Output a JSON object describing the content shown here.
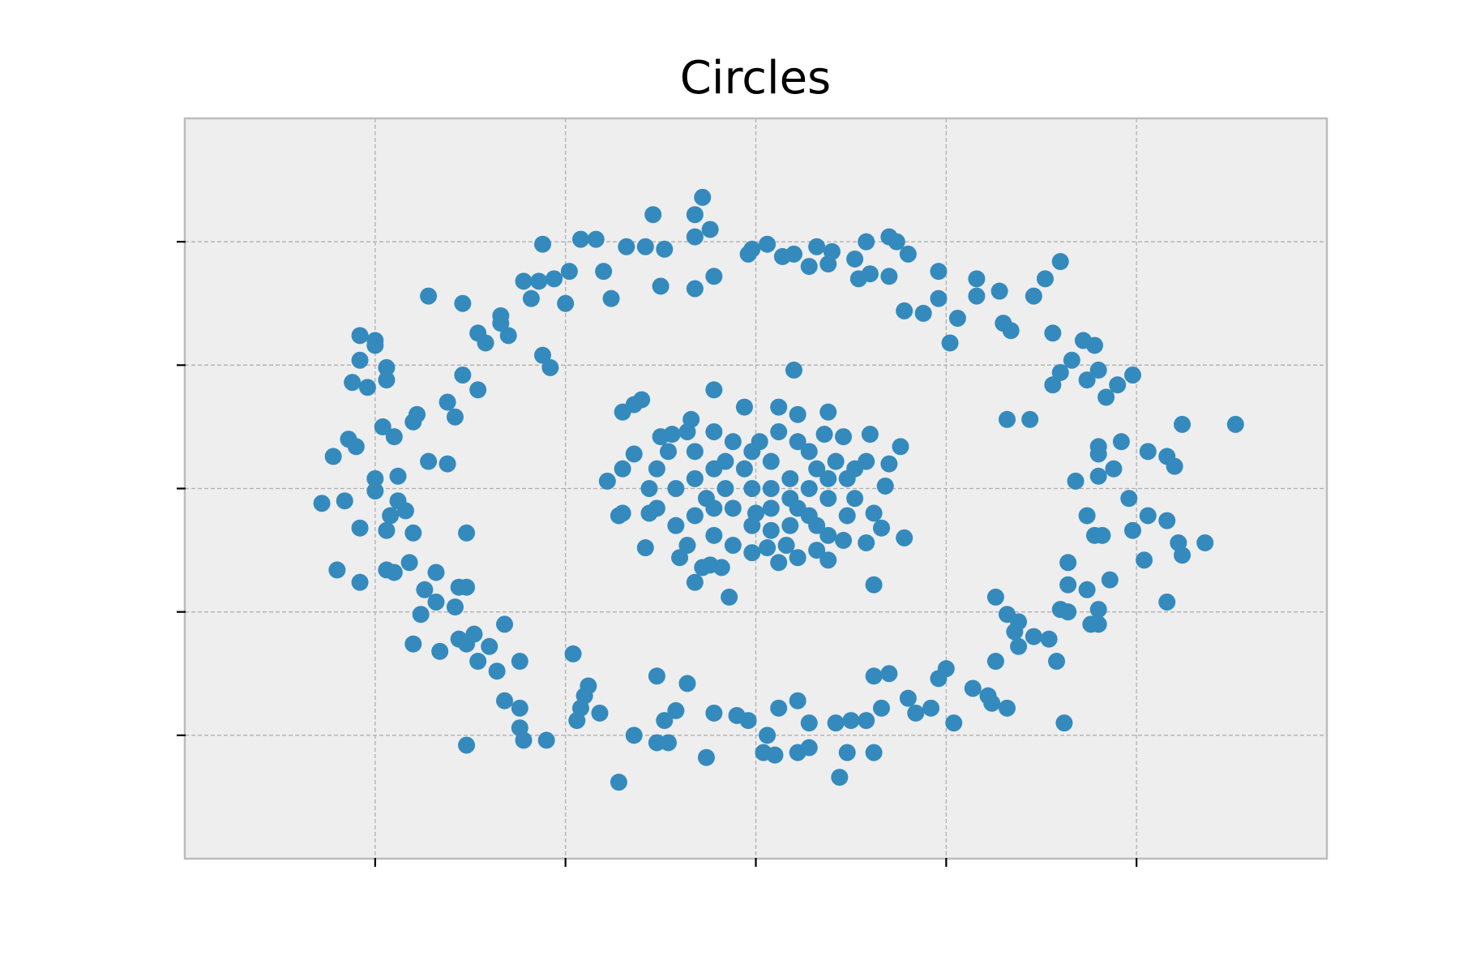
{
  "chart_data": {
    "type": "scatter",
    "title": "Circles",
    "color": "#348abd",
    "xlim": [
      -1.5,
      1.5
    ],
    "ylim": [
      -1.5,
      1.5
    ],
    "xticks": [
      -1,
      -0.5,
      0,
      0.5,
      1
    ],
    "yticks": [
      -1,
      -0.5,
      0,
      0.5,
      1
    ],
    "grid": true,
    "x": [
      -0.56,
      -0.46,
      -0.42,
      -0.34,
      -0.29,
      -0.24,
      -0.27,
      -0.16,
      -0.14,
      -0.16,
      -0.12,
      -0.4,
      -0.49,
      -0.5,
      -0.38,
      -0.25,
      -0.16,
      -0.11,
      -0.61,
      -0.57,
      -0.53,
      -0.59,
      -0.02,
      -0.01,
      0.03,
      0.07,
      0.1,
      0.16,
      0.14,
      0.19,
      0.2,
      0.26,
      0.29,
      0.35,
      0.37,
      0.4,
      0.35,
      0.27,
      0.3,
      0.48,
      0.58,
      0.64,
      0.58,
      0.48,
      0.44,
      0.39,
      0.53,
      0.51,
      0.76,
      0.8,
      0.73,
      0.65,
      0.67,
      0.78,
      0.86,
      0.89,
      0.83,
      0.8,
      0.78,
      0.9,
      0.87,
      0.95,
      0.92,
      0.99,
      0.66,
      0.72,
      1.12,
      1.26,
      0.9,
      0.9,
      0.96,
      1.03,
      1.08,
      1.1,
      0.94,
      0.9,
      0.84,
      0.98,
      1.03,
      0.99,
      1.08,
      0.87,
      0.89,
      0.91,
      1.11,
      1.18,
      1.12,
      1.02,
      0.82,
      0.82,
      0.87,
      0.93,
      0.9,
      0.8,
      0.82,
      0.88,
      0.9,
      1.08,
      0.63,
      0.66,
      0.69,
      0.68,
      0.69,
      0.73,
      0.77,
      0.79,
      0.63,
      0.81,
      0.5,
      0.48,
      0.57,
      0.61,
      0.62,
      0.66,
      0.46,
      0.4,
      0.42,
      0.52,
      0.35,
      0.31,
      0.33,
      0.29,
      0.25,
      0.21,
      0.14,
      0.11,
      0.06,
      0.03,
      0.02,
      0.05,
      0.11,
      0.14,
      0.24,
      0.22,
      0.31,
      -0.02,
      -0.05,
      -0.11,
      -0.13,
      -0.21,
      -0.24,
      -0.26,
      -0.23,
      -0.32,
      -0.26,
      -0.18,
      -0.36,
      -0.44,
      -0.45,
      -0.46,
      -0.47,
      -0.41,
      -0.48,
      -0.55,
      -0.61,
      -0.62,
      -0.62,
      -0.66,
      -0.62,
      -0.68,
      -0.73,
      -0.66,
      -0.7,
      -0.74,
      -0.78,
      -0.76,
      -0.83,
      -0.9,
      -0.76,
      -0.79,
      -0.76,
      -0.78,
      -0.84,
      -0.87,
      -0.88,
      -0.84,
      -0.91,
      -0.97,
      -0.95,
      -1.1,
      -1.04,
      -0.9,
      -0.76,
      -0.97,
      -1.04,
      -0.96,
      -0.92,
      -0.94,
      -1.0,
      -1.0,
      -0.94,
      -1.14,
      -1.08,
      -0.86,
      -0.81,
      -1.11,
      -1.07,
      -1.05,
      -0.98,
      -0.95,
      -0.9,
      -0.89,
      -0.79,
      -0.81,
      -0.77,
      -0.73,
      -1.06,
      -1.02,
      -0.97,
      -1.04,
      -0.97,
      -1.04,
      -1.0,
      -1.0,
      -0.86,
      -0.77,
      -0.73,
      -0.71,
      -0.67,
      -0.67,
      -0.65,
      -0.56,
      -0.54,
      0.1,
      -0.11,
      -0.35,
      -0.32,
      -0.3,
      -0.03,
      0.06,
      0.11,
      0.19,
      -0.17,
      -0.25,
      -0.22,
      0.3,
      0.38,
      0.23,
      0.18,
      -0.32,
      -0.35,
      -0.39,
      -0.36,
      -0.35,
      -0.29,
      -0.2,
      -0.16,
      -0.07,
      0.11,
      0.19,
      0.31,
      0.39,
      0.33,
      0.31,
      0.34,
      0.35,
      0.29,
      -0.12,
      -0.09,
      -0.14,
      -0.01,
      0.03,
      0.08,
      0.16,
      0.23,
      -0.26,
      -0.21,
      -0.16,
      -0.11,
      -0.06,
      -0.01,
      0.04,
      0.09,
      0.14,
      0.19,
      0.24,
      0.29,
      -0.16,
      -0.11,
      -0.06,
      -0.01,
      0.04,
      0.09,
      0.14,
      0.19,
      -0.26,
      -0.21,
      -0.18,
      -0.13,
      -0.08,
      -0.03,
      0.01,
      0.06,
      0.11,
      0.16,
      0.21,
      0.26,
      -0.28,
      -0.23,
      -0.18,
      -0.11,
      -0.01,
      0.04,
      0.09,
      0.14,
      0.19,
      0.24,
      -0.06,
      0.06,
      -0.11,
      -0.08,
      0.11,
      0.16,
      0.04,
      -0.16,
      0.26,
      -0.28,
      0.0
    ],
    "values": [
      0.99,
      1.01,
      1.01,
      0.98,
      0.98,
      0.97,
      1.11,
      1.11,
      1.18,
      1.02,
      1.05,
      0.88,
      0.88,
      0.75,
      0.77,
      0.82,
      0.81,
      0.86,
      0.84,
      0.84,
      0.85,
      0.77,
      0.95,
      0.97,
      0.99,
      0.94,
      0.95,
      0.98,
      0.9,
      0.91,
      0.96,
      0.93,
      1.0,
      1.02,
      1.0,
      0.95,
      0.86,
      0.85,
      0.87,
      0.88,
      0.85,
      0.8,
      0.78,
      0.77,
      0.71,
      0.72,
      0.69,
      0.59,
      0.85,
      0.92,
      0.78,
      0.67,
      0.64,
      0.63,
      0.6,
      0.58,
      0.52,
      0.47,
      0.42,
      0.48,
      0.44,
      0.42,
      0.37,
      0.46,
      0.28,
      0.28,
      0.26,
      0.26,
      0.17,
      0.14,
      0.19,
      0.15,
      0.13,
      0.09,
      0.08,
      0.05,
      0.03,
      -0.04,
      -0.11,
      -0.17,
      -0.13,
      -0.11,
      -0.19,
      -0.19,
      -0.22,
      -0.22,
      -0.27,
      -0.29,
      -0.3,
      -0.39,
      -0.41,
      -0.37,
      -0.49,
      -0.49,
      -0.5,
      -0.55,
      -0.55,
      -0.46,
      -0.44,
      -0.51,
      -0.54,
      -0.58,
      -0.64,
      -0.6,
      -0.61,
      -0.7,
      -0.7,
      -0.95,
      -0.73,
      -0.77,
      -0.81,
      -0.84,
      -0.87,
      -0.89,
      -0.89,
      -0.85,
      -0.91,
      -0.95,
      -0.75,
      -0.76,
      -0.89,
      -0.94,
      -0.94,
      -0.95,
      -0.95,
      -0.86,
      -0.89,
      -1.0,
      -1.07,
      -1.08,
      -1.07,
      -1.05,
      -1.07,
      -1.17,
      -1.07,
      -0.94,
      -0.92,
      -0.91,
      -1.09,
      -0.9,
      -0.94,
      -1.03,
      -1.03,
      -1.0,
      -0.76,
      -0.79,
      -1.19,
      -0.8,
      -0.84,
      -0.89,
      -0.94,
      -0.91,
      -0.67,
      -1.02,
      -1.02,
      -0.97,
      -0.89,
      -0.86,
      -0.7,
      -0.74,
      -0.7,
      -0.55,
      -0.64,
      -0.59,
      -0.61,
      -0.63,
      -0.66,
      -0.63,
      -1.04,
      -0.48,
      -0.4,
      -0.4,
      -0.46,
      -0.41,
      -0.51,
      -0.34,
      -0.3,
      -0.33,
      -0.34,
      -0.33,
      -0.38,
      -0.18,
      -0.18,
      -0.17,
      -0.16,
      -0.11,
      -0.09,
      -0.05,
      -0.01,
      0.04,
      0.05,
      -0.06,
      -0.05,
      0.11,
      0.1,
      0.13,
      0.2,
      0.17,
      0.25,
      0.21,
      0.27,
      0.3,
      0.29,
      0.35,
      0.46,
      0.4,
      0.43,
      0.41,
      0.44,
      0.52,
      0.49,
      0.62,
      0.6,
      0.58,
      0.78,
      0.75,
      0.63,
      0.59,
      0.7,
      0.67,
      0.62,
      0.54,
      0.49,
      0.48,
      0.4,
      0.31,
      0.34,
      0.36,
      0.33,
      0.33,
      0.3,
      0.31,
      0.28,
      0.21,
      0.22,
      0.22,
      0.17,
      0.21,
      0.22,
      0.14,
      0.08,
      0.03,
      -0.11,
      -0.1,
      -0.24,
      -0.28,
      -0.38,
      -0.44,
      -0.28,
      -0.29,
      -0.39,
      -0.2,
      -0.16,
      -0.1,
      0.01,
      0.1,
      -0.22,
      -0.31,
      -0.32,
      -0.32,
      -0.26,
      -0.24,
      -0.23,
      -0.25,
      -0.21,
      0.08,
      0.0,
      0.15,
      0.08,
      0.19,
      0.0,
      0.11,
      0.04,
      0.15,
      -0.04,
      0.04,
      0.11,
      -0.11,
      -0.19,
      -0.08,
      -0.15,
      -0.08,
      -0.15,
      -0.11,
      -0.19,
      -0.08,
      -0.15,
      -0.23,
      -0.04,
      0.0,
      0.08,
      0.19,
      0.23,
      0.19,
      0.08,
      0.11,
      -0.04,
      0.0,
      0.15,
      0.23,
      0.23,
      0.15,
      0.0,
      -0.04,
      0.0,
      0.04,
      -0.11,
      -0.23,
      -0.3,
      -0.08,
      0.11,
      -0.08,
      -0.15,
      -0.17,
      0.04,
      0.08,
      -0.1,
      -0.1
    ]
  }
}
